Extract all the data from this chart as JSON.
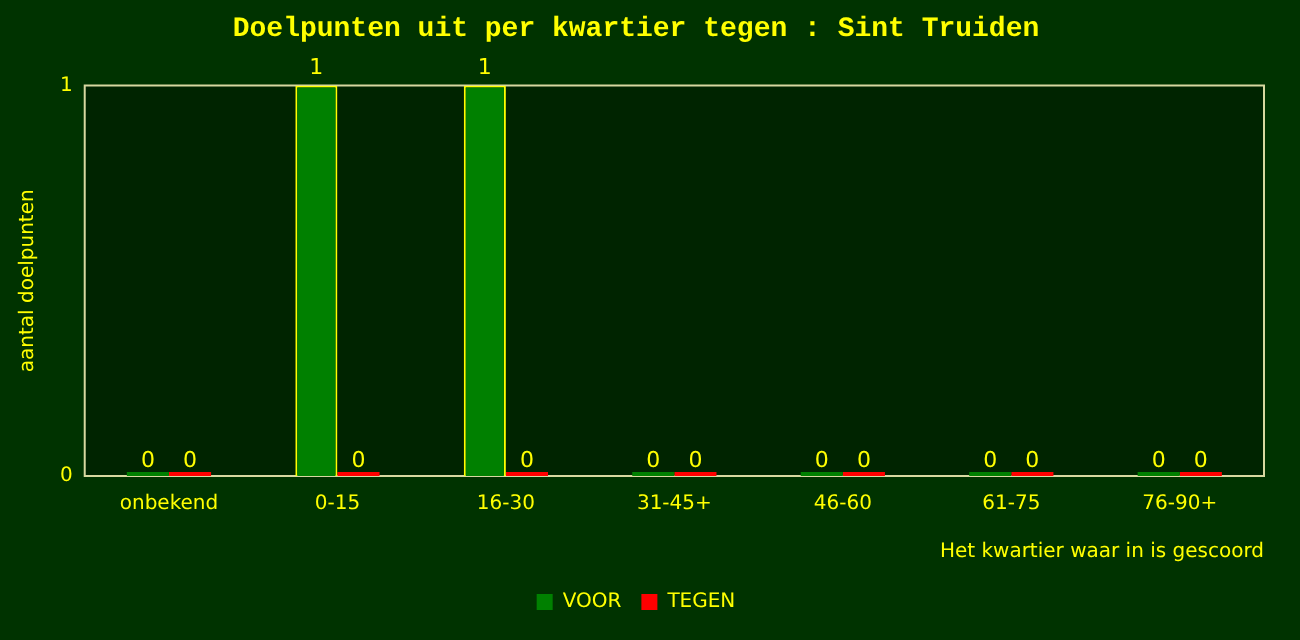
{
  "chart_data": {
    "type": "bar",
    "title": "Doelpunten uit per kwartier tegen : Sint Truiden",
    "xlabel": "Het kwartier waar in is gescoord",
    "ylabel": "aantal doelpunten",
    "categories": [
      "onbekend",
      "0-15",
      "16-30",
      "31-45+",
      "46-60",
      "61-75",
      "76-90+"
    ],
    "series": [
      {
        "name": "VOOR",
        "color": "#008000",
        "values": [
          0,
          1,
          1,
          0,
          0,
          0,
          0
        ]
      },
      {
        "name": "TEGEN",
        "color": "#ff0000",
        "values": [
          0,
          0,
          0,
          0,
          0,
          0,
          0
        ]
      }
    ],
    "ylim": [
      0,
      1
    ],
    "yticks": [
      0,
      1
    ],
    "grid": false,
    "legend": "bottom",
    "data_labels": true
  }
}
